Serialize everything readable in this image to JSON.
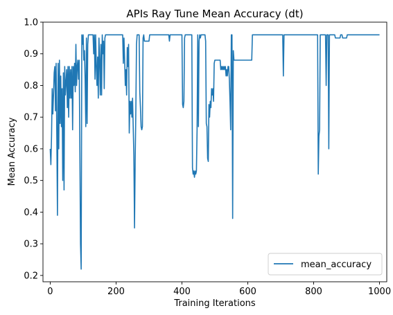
{
  "chart_data": {
    "type": "line",
    "title": "APIs Ray Tune Mean Accuracy (dt)",
    "xlabel": "Training Iterations",
    "ylabel": "Mean Accuracy",
    "xlim": [
      -22,
      1022
    ],
    "ylim": [
      0.18,
      1.0
    ],
    "xticks": [
      0,
      200,
      400,
      600,
      800,
      1000
    ],
    "yticks": [
      0.2,
      0.3,
      0.4,
      0.5,
      0.6,
      0.7,
      0.8,
      0.9,
      1.0
    ],
    "legend_position": "lower-right",
    "grid": false,
    "series": [
      {
        "name": "mean_accuracy",
        "color": "#1f77b4",
        "points": [
          [
            0,
            0.6
          ],
          [
            2,
            0.55
          ],
          [
            4,
            0.64
          ],
          [
            6,
            0.79
          ],
          [
            8,
            0.71
          ],
          [
            10,
            0.77
          ],
          [
            12,
            0.84
          ],
          [
            14,
            0.86
          ],
          [
            16,
            0.72
          ],
          [
            18,
            0.87
          ],
          [
            20,
            0.64
          ],
          [
            22,
            0.39
          ],
          [
            24,
            0.87
          ],
          [
            26,
            0.6
          ],
          [
            28,
            0.88
          ],
          [
            30,
            0.68
          ],
          [
            32,
            0.83
          ],
          [
            34,
            0.67
          ],
          [
            36,
            0.79
          ],
          [
            38,
            0.5
          ],
          [
            40,
            0.84
          ],
          [
            42,
            0.47
          ],
          [
            44,
            0.86
          ],
          [
            46,
            0.77
          ],
          [
            48,
            0.81
          ],
          [
            50,
            0.85
          ],
          [
            52,
            0.73
          ],
          [
            54,
            0.86
          ],
          [
            56,
            0.7
          ],
          [
            58,
            0.86
          ],
          [
            60,
            0.76
          ],
          [
            62,
            0.85
          ],
          [
            64,
            0.76
          ],
          [
            66,
            0.86
          ],
          [
            68,
            0.66
          ],
          [
            70,
            0.86
          ],
          [
            72,
            0.8
          ],
          [
            74,
            0.87
          ],
          [
            76,
            0.78
          ],
          [
            78,
            0.93
          ],
          [
            80,
            0.8
          ],
          [
            82,
            0.86
          ],
          [
            84,
            0.88
          ],
          [
            86,
            0.82
          ],
          [
            88,
            0.88
          ],
          [
            90,
            0.6
          ],
          [
            92,
            0.3
          ],
          [
            94,
            0.22
          ],
          [
            96,
            0.96
          ],
          [
            98,
            0.93
          ],
          [
            100,
            0.96
          ],
          [
            102,
            0.88
          ],
          [
            104,
            0.91
          ],
          [
            106,
            0.82
          ],
          [
            108,
            0.67
          ],
          [
            110,
            0.95
          ],
          [
            112,
            0.68
          ],
          [
            114,
            0.93
          ],
          [
            116,
            0.96
          ],
          [
            130,
            0.96
          ],
          [
            132,
            0.9
          ],
          [
            134,
            0.96
          ],
          [
            136,
            0.82
          ],
          [
            138,
            0.96
          ],
          [
            140,
            0.86
          ],
          [
            142,
            0.8
          ],
          [
            144,
            0.89
          ],
          [
            146,
            0.76
          ],
          [
            148,
            0.95
          ],
          [
            150,
            0.88
          ],
          [
            152,
            0.77
          ],
          [
            154,
            0.93
          ],
          [
            156,
            0.77
          ],
          [
            158,
            0.96
          ],
          [
            160,
            0.9
          ],
          [
            162,
            0.94
          ],
          [
            164,
            0.79
          ],
          [
            166,
            0.95
          ],
          [
            168,
            0.96
          ],
          [
            180,
            0.96
          ],
          [
            182,
            0.96
          ],
          [
            220,
            0.96
          ],
          [
            222,
            0.87
          ],
          [
            224,
            0.95
          ],
          [
            226,
            0.88
          ],
          [
            228,
            0.8
          ],
          [
            230,
            0.85
          ],
          [
            232,
            0.77
          ],
          [
            234,
            0.92
          ],
          [
            236,
            0.86
          ],
          [
            238,
            0.93
          ],
          [
            240,
            0.65
          ],
          [
            242,
            0.75
          ],
          [
            244,
            0.71
          ],
          [
            246,
            0.75
          ],
          [
            248,
            0.7
          ],
          [
            250,
            0.76
          ],
          [
            252,
            0.67
          ],
          [
            254,
            0.58
          ],
          [
            256,
            0.35
          ],
          [
            258,
            0.56
          ],
          [
            260,
            0.72
          ],
          [
            262,
            0.93
          ],
          [
            264,
            0.96
          ],
          [
            270,
            0.96
          ],
          [
            272,
            0.78
          ],
          [
            274,
            0.73
          ],
          [
            276,
            0.67
          ],
          [
            278,
            0.66
          ],
          [
            280,
            0.67
          ],
          [
            282,
            0.95
          ],
          [
            284,
            0.96
          ],
          [
            286,
            0.94
          ],
          [
            300,
            0.94
          ],
          [
            302,
            0.96
          ],
          [
            360,
            0.96
          ],
          [
            362,
            0.94
          ],
          [
            364,
            0.96
          ],
          [
            400,
            0.96
          ],
          [
            402,
            0.74
          ],
          [
            404,
            0.73
          ],
          [
            406,
            0.75
          ],
          [
            408,
            0.95
          ],
          [
            410,
            0.96
          ],
          [
            430,
            0.96
          ],
          [
            432,
            0.54
          ],
          [
            434,
            0.52
          ],
          [
            436,
            0.53
          ],
          [
            438,
            0.51
          ],
          [
            440,
            0.53
          ],
          [
            442,
            0.52
          ],
          [
            444,
            0.53
          ],
          [
            446,
            0.66
          ],
          [
            448,
            0.96
          ],
          [
            450,
            0.67
          ],
          [
            452,
            0.94
          ],
          [
            454,
            0.96
          ],
          [
            456,
            0.95
          ],
          [
            458,
            0.96
          ],
          [
            470,
            0.96
          ],
          [
            472,
            0.94
          ],
          [
            474,
            0.68
          ],
          [
            476,
            0.67
          ],
          [
            478,
            0.57
          ],
          [
            480,
            0.56
          ],
          [
            482,
            0.74
          ],
          [
            484,
            0.7
          ],
          [
            486,
            0.75
          ],
          [
            488,
            0.73
          ],
          [
            490,
            0.79
          ],
          [
            492,
            0.77
          ],
          [
            494,
            0.79
          ],
          [
            496,
            0.75
          ],
          [
            498,
            0.87
          ],
          [
            500,
            0.88
          ],
          [
            516,
            0.88
          ],
          [
            518,
            0.85
          ],
          [
            520,
            0.86
          ],
          [
            522,
            0.85
          ],
          [
            524,
            0.86
          ],
          [
            526,
            0.85
          ],
          [
            528,
            0.86
          ],
          [
            530,
            0.85
          ],
          [
            532,
            0.86
          ],
          [
            534,
            0.83
          ],
          [
            536,
            0.85
          ],
          [
            538,
            0.83
          ],
          [
            540,
            0.86
          ],
          [
            542,
            0.86
          ],
          [
            544,
            0.82
          ],
          [
            546,
            0.75
          ],
          [
            548,
            0.66
          ],
          [
            550,
            0.96
          ],
          [
            552,
            0.96
          ],
          [
            554,
            0.38
          ],
          [
            556,
            0.91
          ],
          [
            558,
            0.88
          ],
          [
            560,
            0.88
          ],
          [
            612,
            0.88
          ],
          [
            614,
            0.96
          ],
          [
            706,
            0.96
          ],
          [
            708,
            0.83
          ],
          [
            710,
            0.96
          ],
          [
            812,
            0.96
          ],
          [
            814,
            0.52
          ],
          [
            816,
            0.64
          ],
          [
            818,
            0.66
          ],
          [
            820,
            0.96
          ],
          [
            836,
            0.96
          ],
          [
            838,
            0.8
          ],
          [
            840,
            0.96
          ],
          [
            844,
            0.96
          ],
          [
            846,
            0.6
          ],
          [
            848,
            0.96
          ],
          [
            864,
            0.96
          ],
          [
            866,
            0.95
          ],
          [
            880,
            0.95
          ],
          [
            882,
            0.96
          ],
          [
            886,
            0.96
          ],
          [
            888,
            0.95
          ],
          [
            900,
            0.95
          ],
          [
            902,
            0.96
          ],
          [
            1000,
            0.96
          ]
        ]
      }
    ]
  }
}
